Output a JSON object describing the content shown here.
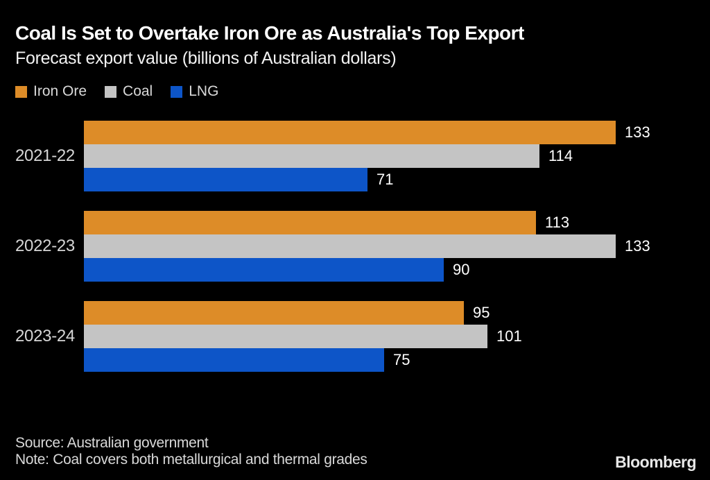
{
  "header": {
    "title": "Coal Is Set to Overtake Iron Ore as Australia's Top Export",
    "subtitle": "Forecast export value (billions of Australian dollars)"
  },
  "legend": [
    {
      "label": "Iron Ore",
      "color": "#DD8C28"
    },
    {
      "label": "Coal",
      "color": "#C4C4C4"
    },
    {
      "label": "LNG",
      "color": "#0D55C8"
    }
  ],
  "chart_data": {
    "type": "bar",
    "orientation": "horizontal",
    "title": "Coal Is Set to Overtake Iron Ore as Australia's Top Export",
    "subtitle": "Forecast export value (billions of Australian dollars)",
    "categories": [
      "2021-22",
      "2022-23",
      "2023-24"
    ],
    "series": [
      {
        "name": "Iron Ore",
        "color": "#DD8C28",
        "values": [
          133,
          113,
          95
        ]
      },
      {
        "name": "Coal",
        "color": "#C4C4C4",
        "values": [
          114,
          133,
          101
        ]
      },
      {
        "name": "LNG",
        "color": "#0D55C8",
        "values": [
          71,
          90,
          75
        ]
      }
    ],
    "xlim": [
      0,
      133
    ],
    "grid": false,
    "value_labels": true,
    "legend_position": "top-left",
    "background": "#000000",
    "text_color": "#FFFFFF"
  },
  "footer": {
    "source": "Source: Australian government",
    "note": "Note: Coal covers both metallurgical and thermal grades",
    "brand": "Bloomberg"
  }
}
